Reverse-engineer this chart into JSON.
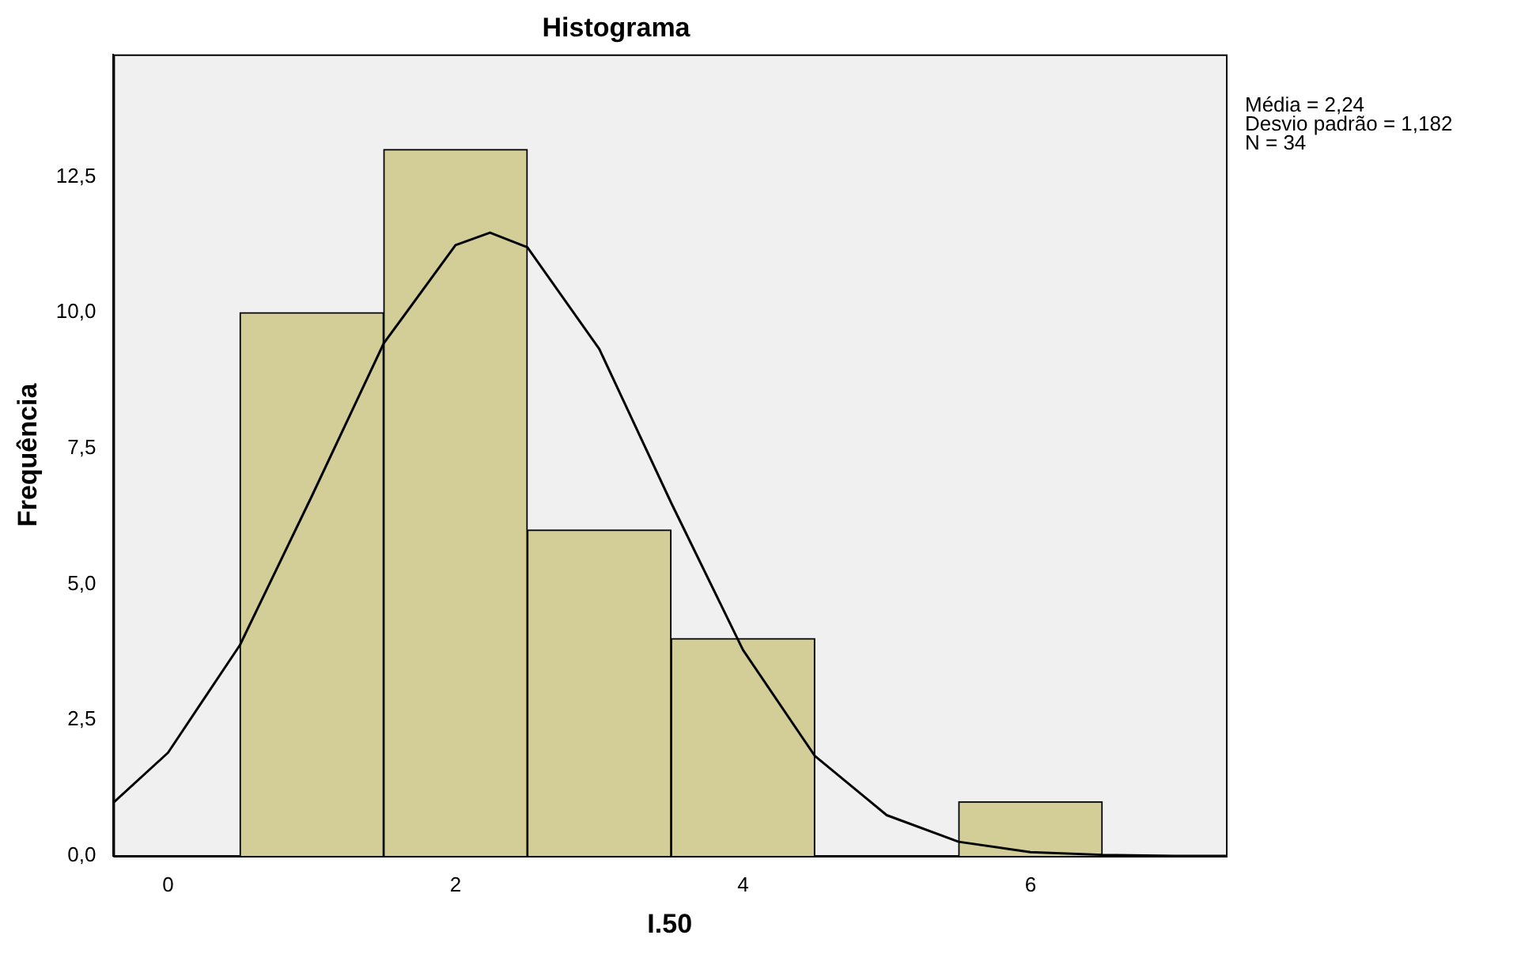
{
  "chart_data": {
    "type": "histogram",
    "title": "Histograma",
    "xlabel": "I.50",
    "ylabel": "Frequência",
    "annotations": [
      "Média = 2,24",
      "Desvio padrão = 1,182",
      "N = 34"
    ],
    "bins": [
      0.5,
      1.5,
      2.5,
      3.5,
      4.5,
      5.5,
      6.5
    ],
    "values": [
      10,
      13,
      6,
      4,
      0,
      1
    ],
    "color": "#d3ce97",
    "series": [
      {
        "type": "line",
        "color": "#000000",
        "x": [
          -0.38,
          0,
          0.5,
          1,
          1.5,
          2,
          2.24,
          2.5,
          3,
          3.5,
          4,
          4.5,
          5,
          5.5,
          6,
          6.5,
          7,
          7.36
        ],
        "values": [
          0.98,
          1.9,
          3.88,
          6.62,
          9.43,
          11.24,
          11.47,
          11.2,
          9.33,
          6.5,
          3.79,
          1.84,
          0.75,
          0.26,
          0.07,
          0.02,
          0,
          0
        ]
      }
    ],
    "xlim": [
      -0.38,
      7.36
    ],
    "ylim": [
      0,
      14.75
    ],
    "xticks": [
      0,
      2,
      4,
      6
    ],
    "yticks": [
      {
        "value": 0,
        "label": "0,0"
      },
      {
        "value": 2.5,
        "label": "2,5"
      },
      {
        "value": 5,
        "label": "5,0"
      },
      {
        "value": 7.5,
        "label": "7,5"
      },
      {
        "value": 10,
        "label": "10,0"
      },
      {
        "value": 12.5,
        "label": "12,5"
      }
    ]
  }
}
